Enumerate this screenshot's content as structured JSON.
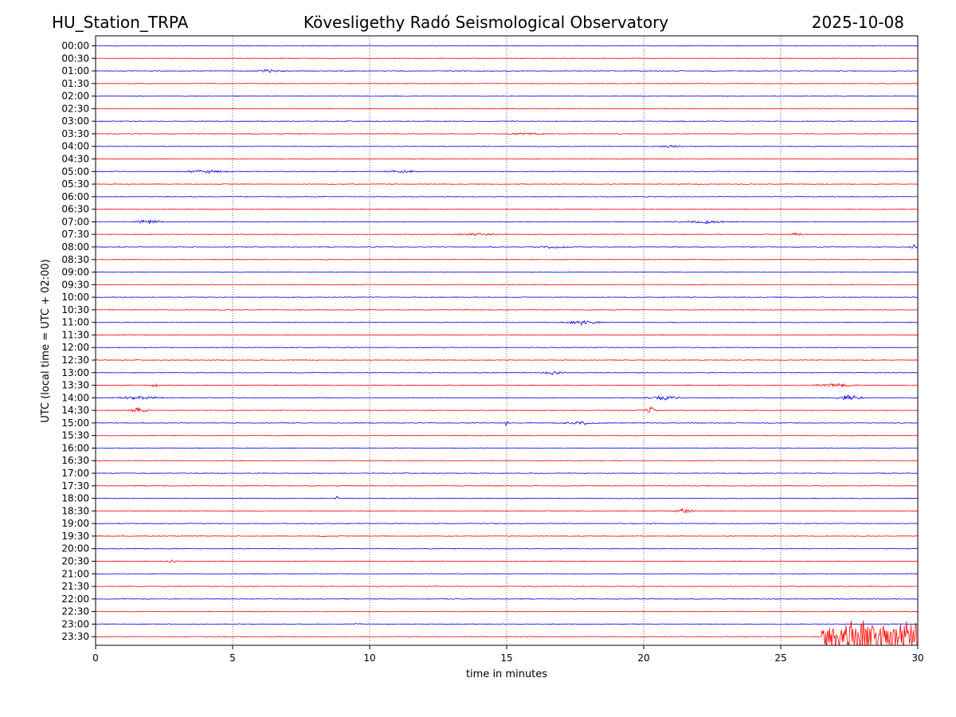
{
  "chart_data": {
    "type": "line",
    "title_left": "HU_Station_TRPA",
    "title_center": "Kövesligethy Radó Seismological Observatory",
    "title_right": "2025-10-08",
    "xlabel": "time in minutes",
    "ylabel": "UTC (local time = UTC + 02:00)",
    "xlim": [
      0,
      30
    ],
    "x_ticks": [
      0,
      5,
      10,
      15,
      20,
      25,
      30
    ],
    "grid": "vertical dotted lines at 5-minute ticks",
    "trace_colors": [
      "#0000ff",
      "#ff0000"
    ],
    "rows": [
      {
        "label": "00:00"
      },
      {
        "label": "00:30"
      },
      {
        "label": "01:00"
      },
      {
        "label": "01:30"
      },
      {
        "label": "02:00"
      },
      {
        "label": "02:30"
      },
      {
        "label": "03:00"
      },
      {
        "label": "03:30"
      },
      {
        "label": "04:00"
      },
      {
        "label": "04:30"
      },
      {
        "label": "05:00"
      },
      {
        "label": "05:30"
      },
      {
        "label": "06:00"
      },
      {
        "label": "06:30"
      },
      {
        "label": "07:00"
      },
      {
        "label": "07:30"
      },
      {
        "label": "08:00"
      },
      {
        "label": "08:30"
      },
      {
        "label": "09:00"
      },
      {
        "label": "09:30"
      },
      {
        "label": "10:00"
      },
      {
        "label": "10:30"
      },
      {
        "label": "11:00"
      },
      {
        "label": "11:30"
      },
      {
        "label": "12:00"
      },
      {
        "label": "12:30"
      },
      {
        "label": "13:00"
      },
      {
        "label": "13:30"
      },
      {
        "label": "14:00"
      },
      {
        "label": "14:30"
      },
      {
        "label": "15:00"
      },
      {
        "label": "15:30"
      },
      {
        "label": "16:00"
      },
      {
        "label": "16:30"
      },
      {
        "label": "17:00"
      },
      {
        "label": "17:30"
      },
      {
        "label": "18:00"
      },
      {
        "label": "18:30"
      },
      {
        "label": "19:00"
      },
      {
        "label": "19:30"
      },
      {
        "label": "20:00"
      },
      {
        "label": "20:30"
      },
      {
        "label": "21:00"
      },
      {
        "label": "21:30"
      },
      {
        "label": "22:00"
      },
      {
        "label": "22:30"
      },
      {
        "label": "23:00"
      },
      {
        "label": "23:30"
      }
    ],
    "events": [
      {
        "row": "01:00",
        "start_min": 5.6,
        "end_min": 7.0,
        "amplitude": 0.25
      },
      {
        "row": "03:30",
        "start_min": 15.0,
        "end_min": 16.5,
        "amplitude": 0.15
      },
      {
        "row": "04:00",
        "start_min": 20.5,
        "end_min": 21.5,
        "amplitude": 0.2
      },
      {
        "row": "05:00",
        "start_min": 3.0,
        "end_min": 5.0,
        "amplitude": 0.25
      },
      {
        "row": "05:00",
        "start_min": 10.5,
        "end_min": 12.0,
        "amplitude": 0.22
      },
      {
        "row": "07:00",
        "start_min": 1.3,
        "end_min": 2.5,
        "amplitude": 0.35
      },
      {
        "row": "07:00",
        "start_min": 21.0,
        "end_min": 23.5,
        "amplitude": 0.3
      },
      {
        "row": "07:30",
        "start_min": 13.0,
        "end_min": 15.0,
        "amplitude": 0.2
      },
      {
        "row": "07:30",
        "start_min": 25.0,
        "end_min": 26.0,
        "amplitude": 0.25
      },
      {
        "row": "08:00",
        "start_min": 16.0,
        "end_min": 17.5,
        "amplitude": 0.25
      },
      {
        "row": "08:00",
        "start_min": 29.7,
        "end_min": 30.0,
        "amplitude": 0.5
      },
      {
        "row": "11:00",
        "start_min": 17.0,
        "end_min": 18.5,
        "amplitude": 0.45
      },
      {
        "row": "13:00",
        "start_min": 16.2,
        "end_min": 17.2,
        "amplitude": 0.35
      },
      {
        "row": "13:30",
        "start_min": 2.0,
        "end_min": 2.3,
        "amplitude": 0.5
      },
      {
        "row": "13:30",
        "start_min": 26.0,
        "end_min": 28.0,
        "amplitude": 0.35
      },
      {
        "row": "14:00",
        "start_min": 0.5,
        "end_min": 2.5,
        "amplitude": 0.35
      },
      {
        "row": "14:00",
        "start_min": 20.0,
        "end_min": 21.5,
        "amplitude": 0.4
      },
      {
        "row": "14:00",
        "start_min": 27.0,
        "end_min": 28.0,
        "amplitude": 0.5
      },
      {
        "row": "14:30",
        "start_min": 1.2,
        "end_min": 2.0,
        "amplitude": 0.55
      },
      {
        "row": "14:30",
        "start_min": 20.0,
        "end_min": 20.5,
        "amplitude": 0.7
      },
      {
        "row": "15:00",
        "start_min": 14.9,
        "end_min": 15.1,
        "amplitude": 0.55
      },
      {
        "row": "15:00",
        "start_min": 17.0,
        "end_min": 18.5,
        "amplitude": 0.3
      },
      {
        "row": "18:00",
        "start_min": 8.7,
        "end_min": 8.9,
        "amplitude": 0.4
      },
      {
        "row": "18:30",
        "start_min": 21.0,
        "end_min": 22.0,
        "amplitude": 0.4
      },
      {
        "row": "19:30",
        "start_min": 8.0,
        "end_min": 8.5,
        "amplitude": 0.2
      },
      {
        "row": "20:30",
        "start_min": 2.5,
        "end_min": 3.0,
        "amplitude": 0.3
      },
      {
        "row": "23:00",
        "start_min": 9.4,
        "end_min": 9.7,
        "amplitude": 0.3
      },
      {
        "row": "23:30",
        "start_min": 26.5,
        "end_min": 30.0,
        "amplitude": 3.0
      }
    ]
  }
}
